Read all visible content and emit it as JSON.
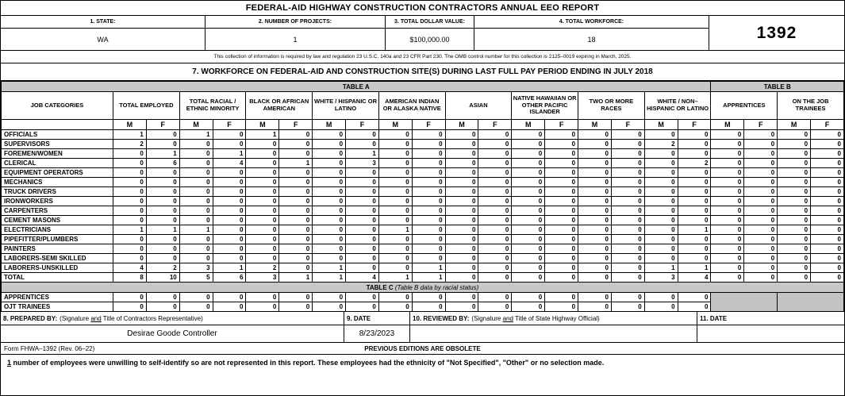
{
  "title": "FEDERAL-AID HIGHWAY CONSTRUCTION CONTRACTORS ANNUAL EEO REPORT",
  "form_number": "1392",
  "fields": [
    {
      "label": "1. STATE:",
      "value": "WA"
    },
    {
      "label": "2. NUMBER OF PROJECTS:",
      "value": "1"
    },
    {
      "label": "3. TOTAL DOLLAR VALUE:",
      "value": "$100,000.00"
    },
    {
      "label": "4. TOTAL WORKFORCE:",
      "value": "18"
    }
  ],
  "omb_notice": "This collection of information is required by law and regulation 23 U.S.C. 140a and 23 CFR Part 230.  The OMB control number for this collection is 2125–0019 expiring in March, 2025.",
  "section7_title": "7. WORKFORCE ON FEDERAL-AID AND CONSTRUCTION SITE(S) DURING LAST FULL PAY PERIOD ENDING IN JULY 2018",
  "chart_data": {
    "type": "table",
    "title": "Workforce on Federal-Aid and Construction Site(s) During Last Full Pay Period Ending in July 2018",
    "column_groups": [
      "TOTAL EMPLOYED",
      "TOTAL RACIAL / ETHNIC MINORITY",
      "BLACK OR AFRICAN AMERICAN",
      "WHITE / HISPANIC OR LATINO",
      "AMERICAN INDIAN OR ALASKA NATIVE",
      "ASIAN",
      "NATIVE HAWAIIAN OR OTHER PACIFIC ISLANDER",
      "TWO OR MORE RACES",
      "WHITE / NON–HISPANIC OR LATINO",
      "APPRENTICES",
      "ON THE JOB TRAINEES"
    ],
    "sex_headers": [
      "M",
      "F"
    ]
  },
  "table": {
    "table_a_label": "TABLE A",
    "table_b_label": "TABLE B",
    "job_col_header": "JOB CATEGORIES",
    "groups": [
      "TOTAL EMPLOYED",
      "TOTAL RACIAL / ETHNIC MINORITY",
      "BLACK OR AFRICAN AMERICAN",
      "WHITE / HISPANIC OR LATINO",
      "AMERICAN INDIAN OR ALASKA NATIVE",
      "ASIAN",
      "NATIVE HAWAIIAN OR OTHER PACIFIC ISLANDER",
      "TWO OR MORE RACES",
      "WHITE / NON–HISPANIC OR LATINO",
      "APPRENTICES",
      "ON THE JOB TRAINEES"
    ],
    "sex_headers": [
      "M",
      "F"
    ],
    "rows": [
      {
        "category": "OFFICIALS",
        "values": [
          1,
          0,
          1,
          0,
          1,
          0,
          0,
          0,
          0,
          0,
          0,
          0,
          0,
          0,
          0,
          0,
          0,
          0,
          0,
          0,
          0,
          0
        ]
      },
      {
        "category": "SUPERVISORS",
        "values": [
          2,
          0,
          0,
          0,
          0,
          0,
          0,
          0,
          0,
          0,
          0,
          0,
          0,
          0,
          0,
          0,
          2,
          0,
          0,
          0,
          0,
          0
        ]
      },
      {
        "category": "FOREMEN/WOMEN",
        "values": [
          0,
          1,
          0,
          1,
          0,
          0,
          0,
          1,
          0,
          0,
          0,
          0,
          0,
          0,
          0,
          0,
          0,
          0,
          0,
          0,
          0,
          0
        ]
      },
      {
        "category": "CLERICAL",
        "values": [
          0,
          6,
          0,
          4,
          0,
          1,
          0,
          3,
          0,
          0,
          0,
          0,
          0,
          0,
          0,
          0,
          0,
          2,
          0,
          0,
          0,
          0
        ]
      },
      {
        "category": "EQUIPMENT OPERATORS",
        "values": [
          0,
          0,
          0,
          0,
          0,
          0,
          0,
          0,
          0,
          0,
          0,
          0,
          0,
          0,
          0,
          0,
          0,
          0,
          0,
          0,
          0,
          0
        ]
      },
      {
        "category": "MECHANICS",
        "values": [
          0,
          0,
          0,
          0,
          0,
          0,
          0,
          0,
          0,
          0,
          0,
          0,
          0,
          0,
          0,
          0,
          0,
          0,
          0,
          0,
          0,
          0
        ]
      },
      {
        "category": "TRUCK DRIVERS",
        "values": [
          0,
          0,
          0,
          0,
          0,
          0,
          0,
          0,
          0,
          0,
          0,
          0,
          0,
          0,
          0,
          0,
          0,
          0,
          0,
          0,
          0,
          0
        ]
      },
      {
        "category": "IRONWORKERS",
        "values": [
          0,
          0,
          0,
          0,
          0,
          0,
          0,
          0,
          0,
          0,
          0,
          0,
          0,
          0,
          0,
          0,
          0,
          0,
          0,
          0,
          0,
          0
        ]
      },
      {
        "category": "CARPENTERS",
        "values": [
          0,
          0,
          0,
          0,
          0,
          0,
          0,
          0,
          0,
          0,
          0,
          0,
          0,
          0,
          0,
          0,
          0,
          0,
          0,
          0,
          0,
          0
        ]
      },
      {
        "category": "CEMENT MASONS",
        "values": [
          0,
          0,
          0,
          0,
          0,
          0,
          0,
          0,
          0,
          0,
          0,
          0,
          0,
          0,
          0,
          0,
          0,
          0,
          0,
          0,
          0,
          0
        ]
      },
      {
        "category": "ELECTRICIANS",
        "values": [
          1,
          1,
          1,
          0,
          0,
          0,
          0,
          0,
          1,
          0,
          0,
          0,
          0,
          0,
          0,
          0,
          0,
          1,
          0,
          0,
          0,
          0
        ]
      },
      {
        "category": "PIPEFITTER/PLUMBERS",
        "values": [
          0,
          0,
          0,
          0,
          0,
          0,
          0,
          0,
          0,
          0,
          0,
          0,
          0,
          0,
          0,
          0,
          0,
          0,
          0,
          0,
          0,
          0
        ]
      },
      {
        "category": "PAINTERS",
        "values": [
          0,
          0,
          0,
          0,
          0,
          0,
          0,
          0,
          0,
          0,
          0,
          0,
          0,
          0,
          0,
          0,
          0,
          0,
          0,
          0,
          0,
          0
        ]
      },
      {
        "category": "LABORERS-SEMI SKILLED",
        "values": [
          0,
          0,
          0,
          0,
          0,
          0,
          0,
          0,
          0,
          0,
          0,
          0,
          0,
          0,
          0,
          0,
          0,
          0,
          0,
          0,
          0,
          0
        ]
      },
      {
        "category": "LABORERS-UNSKILLED",
        "values": [
          4,
          2,
          3,
          1,
          2,
          0,
          1,
          0,
          0,
          1,
          0,
          0,
          0,
          0,
          0,
          0,
          1,
          1,
          0,
          0,
          0,
          0
        ]
      },
      {
        "category": "TOTAL",
        "values": [
          8,
          10,
          5,
          6,
          3,
          1,
          1,
          4,
          1,
          1,
          0,
          0,
          0,
          0,
          0,
          0,
          3,
          4,
          0,
          0,
          0,
          0
        ]
      }
    ],
    "table_c_label": "TABLE C",
    "table_c_note": "(Table B data by racial status)",
    "table_c_rows": [
      {
        "category": "APPRENTICES",
        "values": [
          0,
          0,
          0,
          0,
          0,
          0,
          0,
          0,
          0,
          0,
          0,
          0,
          0,
          0,
          0,
          0,
          0,
          0
        ]
      },
      {
        "category": "OJT TRAINEES",
        "values": [
          0,
          0,
          0,
          0,
          0,
          0,
          0,
          0,
          0,
          0,
          0,
          0,
          0,
          0,
          0,
          0,
          0,
          0
        ]
      }
    ]
  },
  "signatures": {
    "prepared_by": {
      "label": "8. PREPARED BY:",
      "note_pre": "(Signature ",
      "note_und": "and",
      "note_post": " Title of Contractors Representative)",
      "value": "Desirae Goode Controller"
    },
    "date_prepared": {
      "label": "9. DATE",
      "value": "8/23/2023"
    },
    "reviewed_by": {
      "label": "10. REVIEWED BY:",
      "note_pre": "(Signature ",
      "note_und": "and",
      "note_post": " Title of State Highway Official)",
      "value": ""
    },
    "date_reviewed": {
      "label": "11. DATE",
      "value": ""
    }
  },
  "footer": {
    "form_id": "Form FHWA–1392 (Rev. 06–22)",
    "obsolete_note": "PREVIOUS EDITIONS ARE OBSOLETE"
  },
  "footnote": {
    "count": "1",
    "text": " number of employees were unwilling to self-identify so are not represented in this report. These employees had the ethnicity of \"Not Specified\", \"Other\" or no selection made."
  },
  "colors": {
    "header_gray": "#c8c8c8",
    "shaded_cell": "#c2c2c2",
    "border": "#000000"
  }
}
